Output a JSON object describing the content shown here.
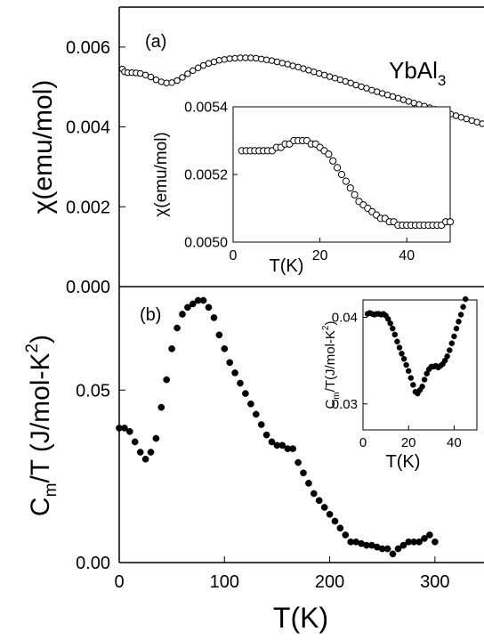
{
  "chart_data": [
    {
      "id": "main-a",
      "panel_label": "(a)",
      "type": "scatter",
      "marker": "open-circle",
      "ylabel": "χ(emu/mol)",
      "annotation": "YbAl",
      "annotation_sub": "3",
      "xlim": [
        0,
        350
      ],
      "ylim": [
        0.0,
        0.007
      ],
      "yticks": [
        "0.000",
        "0.002",
        "0.004",
        "0.006"
      ],
      "ytick_values": [
        0.0,
        0.002,
        0.004,
        0.006
      ],
      "x": [
        3,
        5,
        8,
        12,
        16,
        20,
        25,
        30,
        35,
        40,
        45,
        50,
        55,
        60,
        65,
        70,
        75,
        80,
        85,
        90,
        95,
        100,
        105,
        110,
        115,
        120,
        125,
        130,
        135,
        140,
        145,
        150,
        155,
        160,
        165,
        170,
        175,
        180,
        185,
        190,
        195,
        200,
        205,
        210,
        215,
        220,
        225,
        230,
        235,
        240,
        245,
        250,
        255,
        260,
        265,
        270,
        275,
        280,
        285,
        290,
        295,
        300,
        305,
        310,
        315,
        320,
        325,
        330,
        335,
        340,
        345,
        350
      ],
      "y": [
        0.00545,
        0.00538,
        0.00536,
        0.00536,
        0.00535,
        0.00534,
        0.0053,
        0.00525,
        0.00518,
        0.00513,
        0.0051,
        0.00511,
        0.00516,
        0.00524,
        0.00533,
        0.00541,
        0.00548,
        0.00554,
        0.00559,
        0.00563,
        0.00567,
        0.00569,
        0.00571,
        0.00572,
        0.00573,
        0.00573,
        0.00573,
        0.00572,
        0.0057,
        0.00568,
        0.00566,
        0.00563,
        0.0056,
        0.00557,
        0.00553,
        0.0055,
        0.00546,
        0.00542,
        0.00538,
        0.00534,
        0.0053,
        0.00526,
        0.00522,
        0.00518,
        0.00514,
        0.0051,
        0.00505,
        0.00501,
        0.00497,
        0.00492,
        0.00488,
        0.00484,
        0.0048,
        0.00476,
        0.00472,
        0.00468,
        0.00464,
        0.0046,
        0.00456,
        0.00452,
        0.00448,
        0.00444,
        0.0044,
        0.00436,
        0.00432,
        0.00428,
        0.00424,
        0.0042,
        0.00416,
        0.00412,
        0.00408,
        0.00404
      ]
    },
    {
      "id": "main-b",
      "panel_label": "(b)",
      "type": "scatter",
      "marker": "filled-circle",
      "xlabel": "T(K)",
      "ylabel_main": "C",
      "ylabel_sub": "m",
      "ylabel_rest": "/T (J/mol-K",
      "ylabel_sup": "2",
      "ylabel_end": ")",
      "xlim": [
        0,
        350
      ],
      "ylim": [
        0.0,
        0.08
      ],
      "xticks": [
        "0",
        "100",
        "200",
        "300"
      ],
      "xtick_values": [
        0,
        100,
        200,
        300
      ],
      "yticks": [
        "0.00",
        "0.05"
      ],
      "ytick_values": [
        0.0,
        0.05
      ],
      "x": [
        0,
        5,
        10,
        15,
        20,
        25,
        30,
        35,
        40,
        45,
        50,
        55,
        60,
        65,
        70,
        75,
        80,
        85,
        90,
        95,
        100,
        105,
        110,
        115,
        120,
        125,
        130,
        135,
        140,
        145,
        150,
        155,
        160,
        165,
        170,
        175,
        180,
        185,
        190,
        195,
        200,
        205,
        210,
        215,
        220,
        225,
        230,
        235,
        240,
        245,
        250,
        255,
        260,
        265,
        270,
        275,
        280,
        285,
        290,
        295,
        300
      ],
      "y": [
        0.039,
        0.039,
        0.038,
        0.035,
        0.032,
        0.03,
        0.032,
        0.036,
        0.045,
        0.053,
        0.062,
        0.068,
        0.072,
        0.074,
        0.075,
        0.076,
        0.076,
        0.074,
        0.071,
        0.066,
        0.062,
        0.058,
        0.055,
        0.052,
        0.049,
        0.046,
        0.043,
        0.04,
        0.037,
        0.035,
        0.034,
        0.034,
        0.033,
        0.033,
        0.029,
        0.026,
        0.023,
        0.02,
        0.018,
        0.016,
        0.014,
        0.012,
        0.01,
        0.008,
        0.006,
        0.006,
        0.0055,
        0.005,
        0.005,
        0.0045,
        0.004,
        0.004,
        0.0025,
        0.004,
        0.005,
        0.006,
        0.006,
        0.006,
        0.007,
        0.008,
        0.006
      ]
    },
    {
      "id": "inset-a",
      "type": "scatter",
      "marker": "open-circle",
      "xlabel": "T(K)",
      "ylabel": "χ(emu/mol)",
      "xlim": [
        0,
        50
      ],
      "ylim": [
        0.005,
        0.0054
      ],
      "xticks": [
        "0",
        "20",
        "40"
      ],
      "xtick_values": [
        0,
        20,
        40
      ],
      "yticks": [
        "0.0050",
        "0.0052",
        "0.0054"
      ],
      "ytick_values": [
        0.005,
        0.0052,
        0.0054
      ],
      "x": [
        2,
        3,
        4,
        5,
        6,
        7,
        8,
        9,
        10,
        11,
        12,
        13,
        14,
        15,
        16,
        17,
        18,
        19,
        20,
        21,
        22,
        23,
        24,
        25,
        26,
        27,
        28,
        29,
        30,
        31,
        32,
        33,
        34,
        35,
        36,
        37,
        38,
        39,
        40,
        41,
        42,
        43,
        44,
        45,
        46,
        47,
        48,
        49,
        50
      ],
      "y": [
        0.00527,
        0.00527,
        0.00527,
        0.00527,
        0.00527,
        0.00527,
        0.00527,
        0.00527,
        0.00528,
        0.00528,
        0.00529,
        0.00529,
        0.0053,
        0.0053,
        0.0053,
        0.0053,
        0.00529,
        0.00529,
        0.00528,
        0.00527,
        0.00526,
        0.00524,
        0.00522,
        0.0052,
        0.00518,
        0.00516,
        0.00514,
        0.00512,
        0.00511,
        0.0051,
        0.00509,
        0.00508,
        0.00507,
        0.00507,
        0.00506,
        0.00506,
        0.00505,
        0.00505,
        0.00505,
        0.00505,
        0.00505,
        0.00505,
        0.00505,
        0.00505,
        0.00505,
        0.00505,
        0.00505,
        0.00506,
        0.00506
      ]
    },
    {
      "id": "inset-b",
      "type": "scatter",
      "marker": "filled-circle",
      "xlabel": "T(K)",
      "ylabel_main": "C",
      "ylabel_sub": "m",
      "ylabel_rest": "/T(J/mol-K",
      "ylabel_sup": "2",
      "ylabel_end": ")",
      "xlim": [
        0,
        50
      ],
      "ylim": [
        0.027,
        0.042
      ],
      "xticks": [
        "0",
        "20",
        "40"
      ],
      "xtick_values": [
        0,
        20,
        40
      ],
      "yticks": [
        "0.03",
        "0.04"
      ],
      "ytick_values": [
        0.03,
        0.04
      ],
      "x": [
        2,
        3,
        4,
        5,
        6,
        7,
        8,
        9,
        10,
        11,
        12,
        13,
        14,
        15,
        16,
        17,
        18,
        19,
        20,
        21,
        22,
        23,
        24,
        25,
        26,
        27,
        28,
        29,
        30,
        31,
        32,
        33,
        34,
        35,
        36,
        37,
        38,
        39,
        40,
        41,
        42,
        43,
        44,
        45
      ],
      "y": [
        0.0404,
        0.0405,
        0.0404,
        0.0403,
        0.0404,
        0.0404,
        0.0403,
        0.0404,
        0.0402,
        0.0398,
        0.0393,
        0.0387,
        0.038,
        0.0372,
        0.0365,
        0.0358,
        0.0352,
        0.0345,
        0.0338,
        0.033,
        0.0322,
        0.0314,
        0.0312,
        0.0316,
        0.032,
        0.0328,
        0.0335,
        0.034,
        0.0343,
        0.0343,
        0.0344,
        0.0342,
        0.0344,
        0.0346,
        0.035,
        0.0355,
        0.0362,
        0.037,
        0.0378,
        0.0387,
        0.0395,
        0.0403,
        0.0412,
        0.0421
      ]
    }
  ]
}
